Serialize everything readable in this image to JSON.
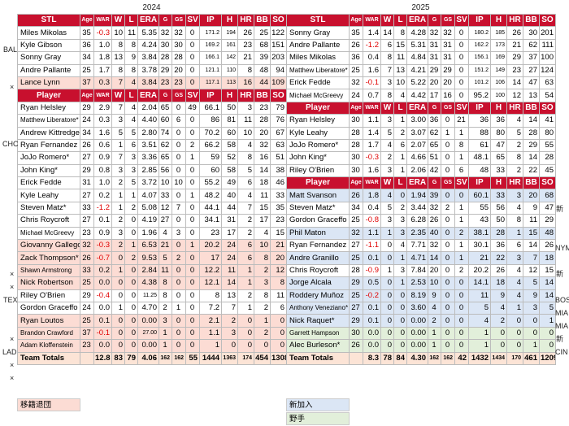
{
  "years": {
    "left": "2024",
    "right": "2025"
  },
  "colors": {
    "header": "#c8102e",
    "released": "#fcdcd4",
    "new": "#dbe6f5",
    "fielder": "#e2efda",
    "negative": "#e00000"
  },
  "left_top_header": [
    "STL",
    "Age",
    "WAR",
    "W",
    "L",
    "ERA",
    "G",
    "GS",
    "SV",
    "IP",
    "H",
    "HR",
    "BB",
    "SO"
  ],
  "left_top": [
    [
      "Miles Mikolas",
      "35",
      "-0.3",
      "10",
      "11",
      "5.35",
      "32",
      "32",
      "0",
      "171.2",
      "194",
      "26",
      "25",
      "122"
    ],
    [
      "Kyle Gibson",
      "36",
      "1.0",
      "8",
      "8",
      "4.24",
      "30",
      "30",
      "0",
      "169.2",
      "161",
      "23",
      "68",
      "151"
    ],
    [
      "Sonny Gray",
      "34",
      "1.8",
      "13",
      "9",
      "3.84",
      "28",
      "28",
      "0",
      "166.1",
      "142",
      "21",
      "39",
      "203"
    ],
    [
      "Andre Pallante",
      "25",
      "1.7",
      "8",
      "8",
      "3.78",
      "29",
      "20",
      "0",
      "121.1",
      "110",
      "8",
      "48",
      "94"
    ],
    [
      "Lance Lynn",
      "37",
      "0.3",
      "7",
      "4",
      "3.84",
      "23",
      "23",
      "0",
      "117.1",
      "113",
      "16",
      "44",
      "109"
    ]
  ],
  "left_mid_header": [
    "Player",
    "Age",
    "WAR",
    "W",
    "L",
    "ERA",
    "G",
    "GS",
    "SV",
    "IP",
    "H",
    "HR",
    "BB",
    "SO"
  ],
  "left_mid": [
    [
      "Ryan Helsley",
      "29",
      "2.9",
      "7",
      "4",
      "2.04",
      "65",
      "0",
      "49",
      "66.1",
      "50",
      "3",
      "23",
      "79"
    ],
    [
      "Matthew Liberatore*",
      "24",
      "0.3",
      "3",
      "4",
      "4.40",
      "60",
      "6",
      "0",
      "86",
      "81",
      "11",
      "28",
      "76"
    ],
    [
      "Andrew Kittredge",
      "34",
      "1.6",
      "5",
      "5",
      "2.80",
      "74",
      "0",
      "0",
      "70.2",
      "60",
      "10",
      "20",
      "67"
    ],
    [
      "Ryan Fernandez",
      "26",
      "0.6",
      "1",
      "6",
      "3.51",
      "62",
      "0",
      "2",
      "66.2",
      "58",
      "4",
      "32",
      "63"
    ],
    [
      "JoJo Romero*",
      "27",
      "0.9",
      "7",
      "3",
      "3.36",
      "65",
      "0",
      "1",
      "59",
      "52",
      "8",
      "16",
      "51"
    ],
    [
      "John King*",
      "29",
      "0.8",
      "3",
      "3",
      "2.85",
      "56",
      "0",
      "0",
      "60",
      "58",
      "5",
      "14",
      "38"
    ],
    [
      "Erick Fedde",
      "31",
      "1.0",
      "2",
      "5",
      "3.72",
      "10",
      "10",
      "0",
      "55.2",
      "49",
      "6",
      "18",
      "46"
    ],
    [
      "Kyle Leahy",
      "27",
      "0.2",
      "1",
      "1",
      "4.07",
      "33",
      "0",
      "1",
      "48.2",
      "40",
      "4",
      "11",
      "33"
    ],
    [
      "Steven Matz*",
      "33",
      "-1.2",
      "1",
      "2",
      "5.08",
      "12",
      "7",
      "0",
      "44.1",
      "44",
      "7",
      "15",
      "35"
    ],
    [
      "Chris Roycroft",
      "27",
      "0.1",
      "2",
      "0",
      "4.19",
      "27",
      "0",
      "0",
      "34.1",
      "31",
      "2",
      "17",
      "23"
    ],
    [
      "Michael McGreevy",
      "23",
      "0.9",
      "3",
      "0",
      "1.96",
      "4",
      "3",
      "0",
      "23",
      "17",
      "2",
      "4",
      "15"
    ],
    [
      "Giovanny Gallegos",
      "32",
      "-0.3",
      "2",
      "1",
      "6.53",
      "21",
      "0",
      "1",
      "20.2",
      "24",
      "6",
      "10",
      "21"
    ],
    [
      "Zack Thompson*",
      "26",
      "-0.7",
      "0",
      "2",
      "9.53",
      "5",
      "2",
      "0",
      "17",
      "24",
      "6",
      "8",
      "20"
    ],
    [
      "Shawn Armstrong",
      "33",
      "0.2",
      "1",
      "0",
      "2.84",
      "11",
      "0",
      "0",
      "12.2",
      "11",
      "1",
      "2",
      "12"
    ],
    [
      "Nick Robertson",
      "25",
      "0.0",
      "0",
      "0",
      "4.38",
      "8",
      "0",
      "0",
      "12.1",
      "14",
      "1",
      "3",
      "8"
    ],
    [
      "Riley O'Brien",
      "29",
      "-0.4",
      "0",
      "0",
      "11.25",
      "8",
      "0",
      "0",
      "8",
      "13",
      "2",
      "8",
      "11"
    ],
    [
      "Gordon Graceffo",
      "24",
      "0.0",
      "1",
      "0",
      "4.70",
      "2",
      "1",
      "0",
      "7.2",
      "7",
      "1",
      "2",
      "6"
    ],
    [
      "Ryan Loutos",
      "25",
      "0.1",
      "0",
      "0",
      "0.00",
      "3",
      "0",
      "0",
      "2.1",
      "2",
      "0",
      "1",
      "0"
    ],
    [
      "Brandon Crawford",
      "37",
      "-0.1",
      "0",
      "0",
      "27.00",
      "1",
      "0",
      "0",
      "1.1",
      "3",
      "0",
      "2",
      "0"
    ],
    [
      "Adam Kloffenstein",
      "23",
      "0.0",
      "0",
      "0",
      "0.00",
      "1",
      "0",
      "0",
      "1",
      "0",
      "0",
      "0",
      "0"
    ]
  ],
  "left_total": [
    "Team Totals",
    "",
    "12.8",
    "83",
    "79",
    "4.06",
    "162",
    "162",
    "55",
    "1444",
    "1363",
    "174",
    "454",
    "1308"
  ],
  "right_top_header": [
    "STL",
    "Age",
    "WAR",
    "W",
    "L",
    "ERA",
    "G",
    "GS",
    "SV",
    "IP",
    "H",
    "HR",
    "BB",
    "SO"
  ],
  "right_top": [
    [
      "Sonny Gray",
      "35",
      "1.4",
      "14",
      "8",
      "4.28",
      "32",
      "32",
      "0",
      "180.2",
      "185",
      "26",
      "30",
      "201"
    ],
    [
      "Andre Pallante",
      "26",
      "-1.2",
      "6",
      "15",
      "5.31",
      "31",
      "31",
      "0",
      "162.2",
      "173",
      "21",
      "62",
      "111"
    ],
    [
      "Miles Mikolas",
      "36",
      "0.4",
      "8",
      "11",
      "4.84",
      "31",
      "31",
      "0",
      "156.1",
      "169",
      "29",
      "37",
      "100"
    ],
    [
      "Matthew Liberatore*",
      "25",
      "1.6",
      "7",
      "13",
      "4.21",
      "29",
      "29",
      "0",
      "151.2",
      "149",
      "23",
      "27",
      "124"
    ],
    [
      "Erick Fedde",
      "32",
      "-0.1",
      "3",
      "10",
      "5.22",
      "20",
      "20",
      "0",
      "101.2",
      "106",
      "14",
      "47",
      "63"
    ],
    [
      "Michael McGreevy",
      "24",
      "0.7",
      "8",
      "4",
      "4.42",
      "17",
      "16",
      "0",
      "95.2",
      "100",
      "12",
      "13",
      "54"
    ]
  ],
  "right_mid_header": [
    "Player",
    "Age",
    "WAR",
    "W",
    "L",
    "ERA",
    "G",
    "GS",
    "SV",
    "IP",
    "H",
    "HR",
    "BB",
    "SO"
  ],
  "right_mid": [
    [
      "Ryan Helsley",
      "30",
      "1.1",
      "3",
      "1",
      "3.00",
      "36",
      "0",
      "21",
      "36",
      "36",
      "4",
      "14",
      "41"
    ],
    [
      "Kyle Leahy",
      "28",
      "1.4",
      "5",
      "2",
      "3.07",
      "62",
      "1",
      "1",
      "88",
      "80",
      "5",
      "28",
      "80"
    ],
    [
      "JoJo Romero*",
      "28",
      "1.7",
      "4",
      "6",
      "2.07",
      "65",
      "0",
      "8",
      "61",
      "47",
      "2",
      "29",
      "55"
    ],
    [
      "John King*",
      "30",
      "-0.3",
      "2",
      "1",
      "4.66",
      "51",
      "0",
      "1",
      "48.1",
      "65",
      "8",
      "14",
      "28"
    ],
    [
      "Riley O'Brien",
      "30",
      "1.6",
      "3",
      "1",
      "2.06",
      "42",
      "0",
      "6",
      "48",
      "33",
      "2",
      "22",
      "45"
    ]
  ],
  "right_low_header": [
    "Player",
    "Age",
    "WAR",
    "W",
    "L",
    "ERA",
    "G",
    "GS",
    "SV",
    "IP",
    "H",
    "HR",
    "BB",
    "SO"
  ],
  "right_low": [
    [
      "Matt Svanson",
      "26",
      "1.8",
      "4",
      "0",
      "1.94",
      "39",
      "0",
      "0",
      "60.1",
      "33",
      "3",
      "20",
      "68"
    ],
    [
      "Steven Matz*",
      "34",
      "0.4",
      "5",
      "2",
      "3.44",
      "32",
      "2",
      "1",
      "55",
      "56",
      "4",
      "9",
      "47"
    ],
    [
      "Gordon Graceffo",
      "25",
      "-0.8",
      "3",
      "3",
      "6.28",
      "26",
      "0",
      "1",
      "43",
      "50",
      "8",
      "11",
      "29"
    ],
    [
      "Phil Maton",
      "32",
      "1.1",
      "1",
      "3",
      "2.35",
      "40",
      "0",
      "2",
      "38.1",
      "28",
      "1",
      "15",
      "48"
    ],
    [
      "Ryan Fernandez",
      "27",
      "-1.1",
      "0",
      "4",
      "7.71",
      "32",
      "0",
      "1",
      "30.1",
      "36",
      "6",
      "14",
      "26"
    ],
    [
      "Andre Granillo",
      "25",
      "0.1",
      "0",
      "1",
      "4.71",
      "14",
      "0",
      "1",
      "21",
      "22",
      "3",
      "7",
      "18"
    ],
    [
      "Chris Roycroft",
      "28",
      "-0.9",
      "1",
      "3",
      "7.84",
      "20",
      "0",
      "2",
      "20.2",
      "26",
      "4",
      "12",
      "15"
    ],
    [
      "Jorge Alcala",
      "29",
      "0.5",
      "0",
      "1",
      "2.53",
      "10",
      "0",
      "0",
      "14.1",
      "18",
      "4",
      "5",
      "14"
    ],
    [
      "Roddery Muñoz",
      "25",
      "-0.2",
      "0",
      "0",
      "8.19",
      "9",
      "0",
      "0",
      "11",
      "9",
      "4",
      "9",
      "14"
    ],
    [
      "Anthony Veneziano*",
      "27",
      "0.1",
      "0",
      "0",
      "3.60",
      "4",
      "0",
      "0",
      "5",
      "4",
      "1",
      "3",
      "5"
    ],
    [
      "Nick Raquet*",
      "29",
      "0.1",
      "0",
      "0",
      "0.00",
      "2",
      "0",
      "0",
      "4",
      "2",
      "0",
      "0",
      "1"
    ],
    [
      "Garrett Hampson",
      "30",
      "0.0",
      "0",
      "0",
      "0.00",
      "1",
      "0",
      "0",
      "1",
      "0",
      "0",
      "0",
      "0"
    ],
    [
      "Alec Burleson*",
      "26",
      "0.0",
      "0",
      "0",
      "0.00",
      "1",
      "0",
      "0",
      "1",
      "0",
      "0",
      "1",
      "0"
    ]
  ],
  "right_total": [
    "Team Totals",
    "",
    "8.3",
    "78",
    "84",
    "4.30",
    "162",
    "162",
    "42",
    "1432",
    "1434",
    "170",
    "461",
    "1209"
  ],
  "legend": {
    "released": "移籍退団",
    "new": "新加入",
    "fielder": "野手"
  },
  "left_side": {
    "bal": "BAL",
    "x1": "×",
    "chc": "CHC",
    "x2": "×",
    "x3": "×",
    "tex": "TEX",
    "x4": "×",
    "lad": "LAD",
    "x5": "×",
    "x6": "×"
  },
  "right_side": {
    "s1": "新",
    "nym": "NYM",
    "s2": "新",
    "bos": "BOS",
    "mia1": "MIA",
    "mia2": "MIA",
    "s3": "新",
    "cin": "CIN"
  }
}
